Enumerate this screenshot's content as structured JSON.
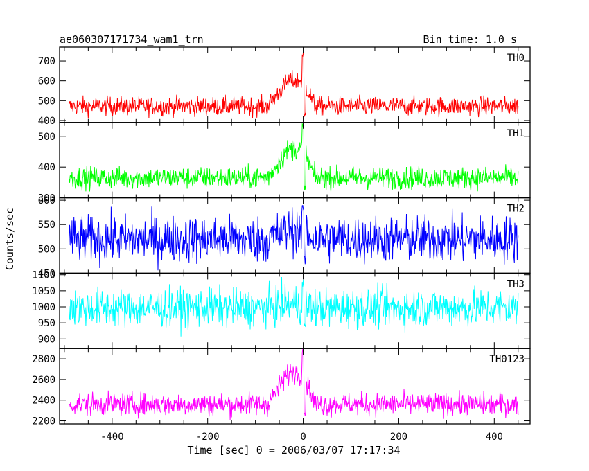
{
  "header": {
    "title": "ae060307171734_wam1_trn",
    "bin_time": "Bin time: 1.0 s"
  },
  "chart_data": {
    "type": "line",
    "xlabel": "Time [sec] 0 = 2006/03/07 17:17:34",
    "ylabel": "Counts/sec",
    "xlim": [
      -510,
      475
    ],
    "xticks": [
      -400,
      -200,
      0,
      200,
      400
    ],
    "x_range": [
      -490,
      450
    ],
    "bin_time_s": 1.0,
    "panels": [
      {
        "name": "TH0",
        "color": "#ff0000",
        "ylim": [
          390,
          770
        ],
        "yticks": [
          400,
          500,
          600,
          700
        ],
        "baseline": 472,
        "noise": 24,
        "peak": 770,
        "burst_plateau": 615
      },
      {
        "name": "TH1",
        "color": "#00ff00",
        "ylim": [
          300,
          545
        ],
        "yticks": [
          300,
          400,
          500
        ],
        "baseline": 365,
        "noise": 18,
        "peak": 545,
        "burst_plateau": 470
      },
      {
        "name": "TH2",
        "color": "#0000ff",
        "ylim": [
          450,
          605
        ],
        "yticks": [
          450,
          500,
          550,
          600
        ],
        "baseline": 520,
        "noise": 24,
        "peak": 600,
        "burst_plateau": 540
      },
      {
        "name": "TH3",
        "color": "#00ffff",
        "ylim": [
          870,
          1105
        ],
        "yticks": [
          900,
          950,
          1000,
          1050,
          1100
        ],
        "baseline": 997,
        "noise": 30,
        "peak": 1085,
        "burst_plateau": 1010
      },
      {
        "name": "TH0123",
        "color": "#ff00ff",
        "ylim": [
          2170,
          2900
        ],
        "yticks": [
          2200,
          2400,
          2600,
          2800
        ],
        "baseline": 2360,
        "noise": 55,
        "peak": 2900,
        "burst_plateau": 2700
      }
    ]
  }
}
